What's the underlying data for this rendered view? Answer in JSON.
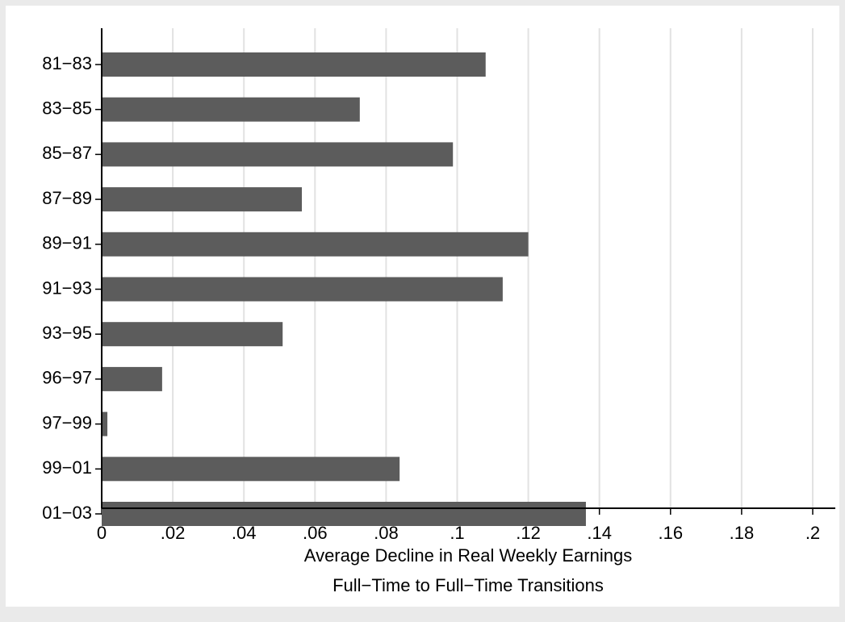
{
  "chart_data": {
    "type": "hbar",
    "categories": [
      "81−83",
      "83−85",
      "85−87",
      "87−89",
      "89−91",
      "91−93",
      "93−95",
      "96−97",
      "97−99",
      "99−01",
      "01−03"
    ],
    "values": [
      0.108,
      0.0726,
      0.0988,
      0.0563,
      0.12,
      0.1128,
      0.0509,
      0.017,
      0.0016,
      0.0838,
      0.1362
    ],
    "color": "#5c5c5c",
    "xlim": [
      0,
      0.2
    ],
    "xticks": [
      0,
      {
        "value": 0.02,
        "label": ".02"
      },
      {
        "value": 0.04,
        "label": ".04"
      },
      {
        "value": 0.06,
        "label": ".06"
      },
      {
        "value": 0.08,
        "label": ".08"
      },
      {
        "value": 0.1,
        "label": ".1"
      },
      {
        "value": 0.12,
        "label": ".12"
      },
      {
        "value": 0.14,
        "label": ".14"
      },
      {
        "value": 0.16,
        "label": ".16"
      },
      {
        "value": 0.18,
        "label": ".18"
      },
      {
        "value": 0.2,
        "label": ".2"
      }
    ],
    "grid": true,
    "xlabel": "Average Decline in Real Weekly Earnings",
    "caption": "Full−Time to Full−Time Transitions"
  }
}
